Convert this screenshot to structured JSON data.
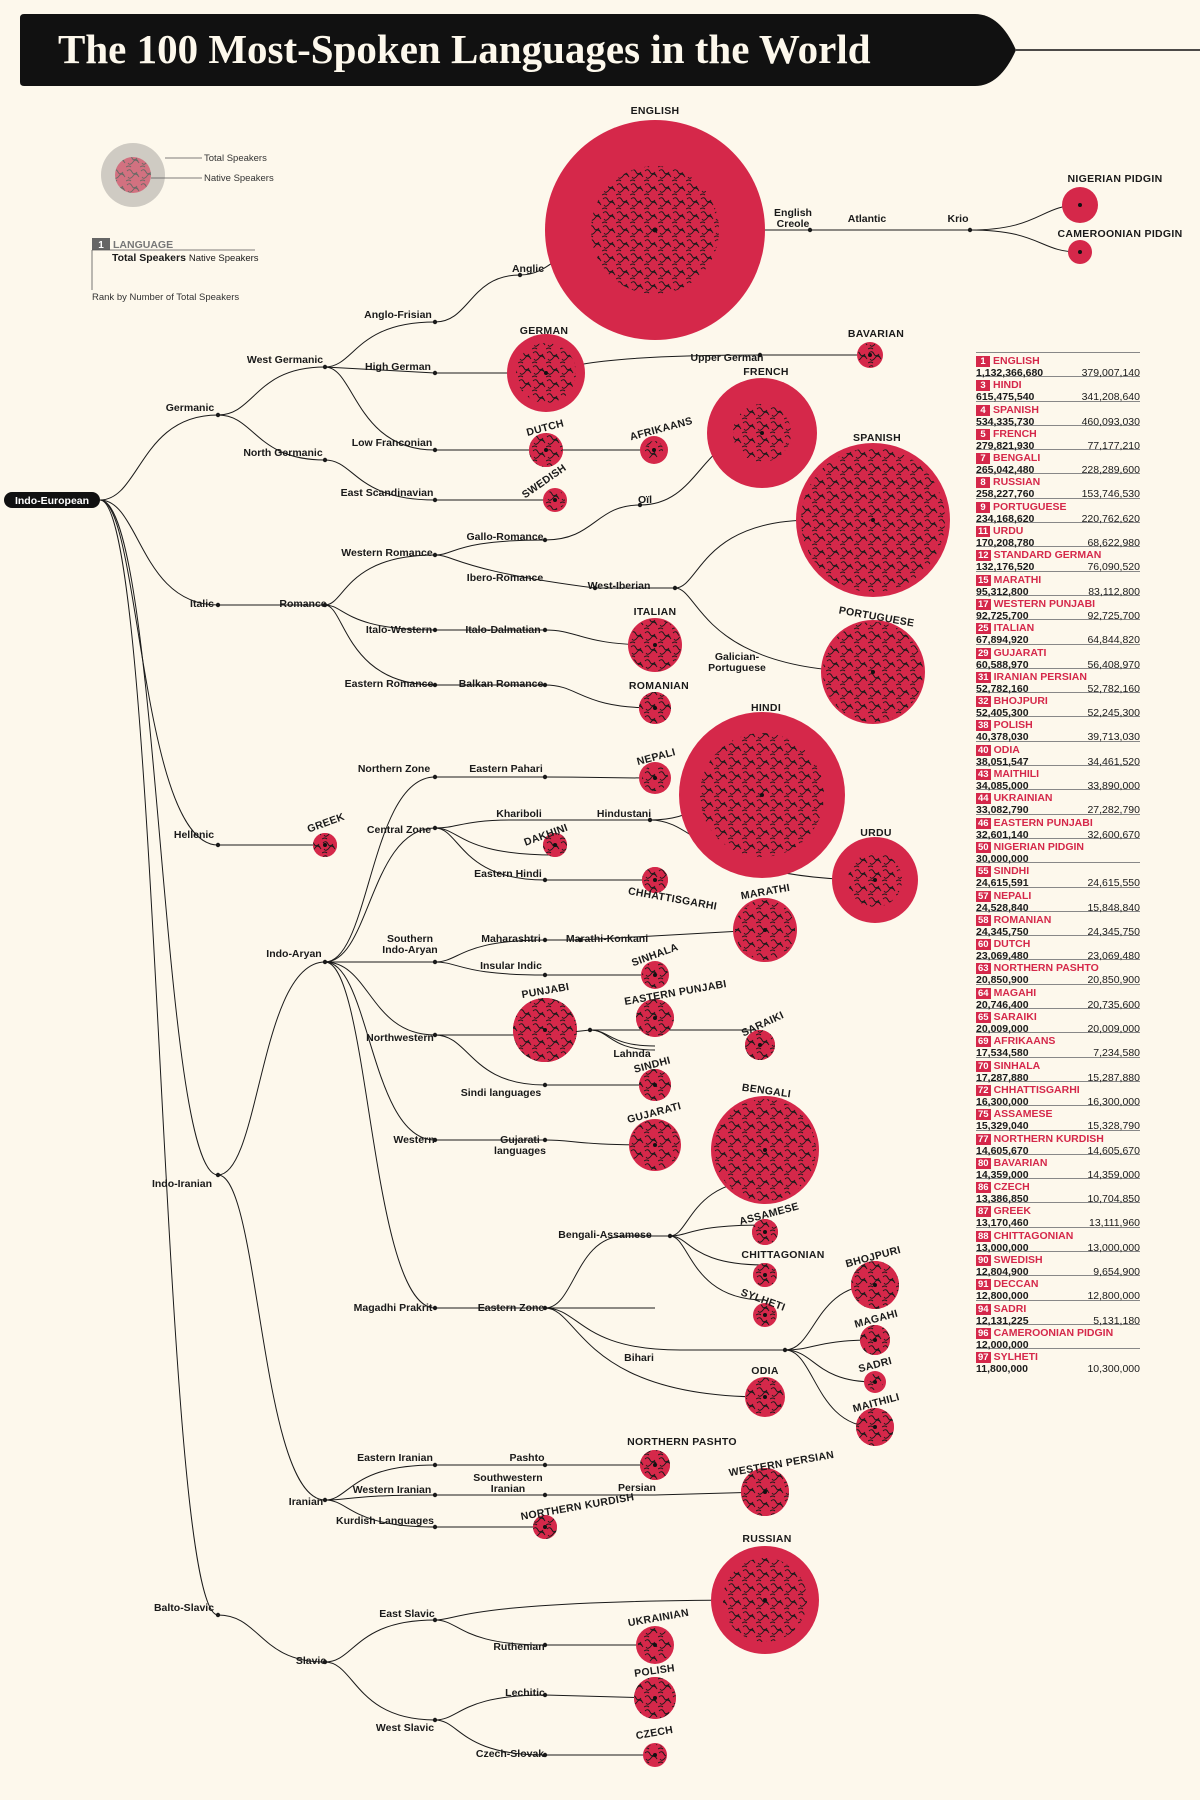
{
  "title": "The 100 Most-Spoken Languages in the World",
  "colors": {
    "accent": "#d5284a",
    "background": "#fdf8ec",
    "ink": "#1a1a1a"
  },
  "legend": {
    "total_speakers": "Total Speakers",
    "native_speakers": "Native Speakers",
    "rank_badge": "1",
    "language": "LANGUAGE",
    "total_bold": "Total Speakers",
    "native_label": "Native Speakers",
    "rank_note": "Rank by Number of Total Speakers"
  },
  "tree_labels": {
    "indo_european": "Indo-European",
    "germanic": "Germanic",
    "west_germanic": "West Germanic",
    "north_germanic": "North Germanic",
    "anglo_frisian": "Anglo-Frisian",
    "anglic": "Anglic",
    "high_german": "High German",
    "upper_german": "Upper German",
    "low_franconian": "Low Franconian",
    "east_scandinavian": "East Scandinavian",
    "english_creole_1": "English",
    "english_creole_2": "Creole",
    "atlantic": "Atlantic",
    "krio": "Krio",
    "italic": "Italic",
    "romance": "Romance",
    "western_romance": "Western Romance",
    "gallo_romance": "Gallo-Romance",
    "oil": "Oïl",
    "ibero_romance": "Ibero-Romance",
    "west_iberian": "West-Iberian",
    "galician_1": "Galician-",
    "galician_2": "Portuguese",
    "italo_western": "Italo-Western",
    "italo_dalmatian": "Italo-Dalmatian",
    "eastern_romance": "Eastern Romance",
    "balkan_romance": "Balkan Romance",
    "hellenic": "Hellenic",
    "indo_iranian": "Indo-Iranian",
    "indo_aryan": "Indo-Aryan",
    "northern_zone": "Northern Zone",
    "eastern_pahari": "Eastern Pahari",
    "central_zone": "Central Zone",
    "khariboli": "Khariboli",
    "hindustani": "Hindustani",
    "eastern_hindi": "Eastern Hindi",
    "southern_ia_1": "Southern",
    "southern_ia_2": "Indo-Aryan",
    "maharashtri": "Maharashtri",
    "marathi_konkani": "Marathi-Konkani",
    "insular_indic": "Insular Indic",
    "northwestern": "Northwestern",
    "lahnda": "Lahnda",
    "sindi_languages": "Sindi languages",
    "western": "Western",
    "gujarati_lang_1": "Gujarati",
    "gujarati_lang_2": "languages",
    "magadhi_prakrit": "Magadhi Prakrit",
    "eastern_zone": "Eastern Zone",
    "bengali_assamese": "Bengali-Assamese",
    "bihari": "Bihari",
    "iranian": "Iranian",
    "eastern_iranian": "Eastern Iranian",
    "pashto": "Pashto",
    "western_iranian": "Western Iranian",
    "sw_iranian_1": "Southwestern",
    "sw_iranian_2": "Iranian",
    "persian": "Persian",
    "kurdish_languages": "Kurdish Languages",
    "balto_slavic": "Balto-Slavic",
    "slavic": "Slavic",
    "east_slavic": "East Slavic",
    "ruthenian": "Ruthenian",
    "west_slavic": "West Slavic",
    "lechitic": "Lechitic",
    "czech_slovak": "Czech-Slovak"
  },
  "language_labels": {
    "english": "ENGLISH",
    "nigerian_pidgin": "NIGERIAN PIDGIN",
    "cameroonian_pidgin": "CAMEROONIAN PIDGIN",
    "german": "GERMAN",
    "bavarian": "BAVARIAN",
    "dutch": "DUTCH",
    "afrikaans": "AFRIKAANS",
    "swedish": "SWEDISH",
    "french": "FRENCH",
    "spanish": "SPANISH",
    "portuguese": "PORTUGUESE",
    "italian": "ITALIAN",
    "romanian": "ROMANIAN",
    "greek": "GREEK",
    "nepali": "NEPALI",
    "hindi": "HINDI",
    "dakhini": "DAKHINI",
    "urdu": "URDU",
    "chhattisgarhi": "CHHATTISGARHI",
    "marathi": "MARATHI",
    "sinhala": "SINHALA",
    "punjabi": "PUNJABI",
    "eastern_punjabi": "EASTERN PUNJABI",
    "saraiki": "SARAIKI",
    "sindhi": "SINDHI",
    "gujarati": "GUJARATI",
    "bengali": "BENGALI",
    "assamese": "ASSAMESE",
    "chittagonian": "CHITTAGONIAN",
    "sylheti": "SYLHETI",
    "bhojpuri": "BHOJPURI",
    "magahi": "MAGAHI",
    "sadri": "SADRI",
    "odia": "ODIA",
    "maithili": "MAITHILI",
    "northern_pashto": "NORTHERN PASHTO",
    "western_persian": "WESTERN PERSIAN",
    "northern_kurdish": "NORTHERN KURDISH",
    "russian": "RUSSIAN",
    "ukrainian": "UKRAINIAN",
    "polish": "POLISH",
    "czech": "CZECH"
  },
  "ranking": [
    {
      "rank": "1",
      "name": "ENGLISH",
      "total": "1,132,366,680",
      "native": "379,007,140"
    },
    {
      "rank": "3",
      "name": "HINDI",
      "total": "615,475,540",
      "native": "341,208,640"
    },
    {
      "rank": "4",
      "name": "SPANISH",
      "total": "534,335,730",
      "native": "460,093,030"
    },
    {
      "rank": "5",
      "name": "FRENCH",
      "total": "279,821,930",
      "native": "77,177,210"
    },
    {
      "rank": "7",
      "name": "BENGALI",
      "total": "265,042,480",
      "native": "228,289,600"
    },
    {
      "rank": "8",
      "name": "RUSSIAN",
      "total": "258,227,760",
      "native": "153,746,530"
    },
    {
      "rank": "9",
      "name": "PORTUGUESE",
      "total": "234,168,620",
      "native": "220,762,620"
    },
    {
      "rank": "11",
      "name": "URDU",
      "total": "170,208,780",
      "native": "68,622,980"
    },
    {
      "rank": "12",
      "name": "STANDARD GERMAN",
      "total": "132,176,520",
      "native": "76,090,520"
    },
    {
      "rank": "15",
      "name": "MARATHI",
      "total": "95,312,800",
      "native": "83,112,800"
    },
    {
      "rank": "17",
      "name": "WESTERN PUNJABI",
      "total": "92,725,700",
      "native": "92,725,700"
    },
    {
      "rank": "25",
      "name": "ITALIAN",
      "total": "67,894,920",
      "native": "64,844,820"
    },
    {
      "rank": "29",
      "name": "GUJARATI",
      "total": "60,588,970",
      "native": "56,408,970"
    },
    {
      "rank": "31",
      "name": "IRANIAN PERSIAN",
      "total": "52,782,160",
      "native": "52,782,160"
    },
    {
      "rank": "32",
      "name": "BHOJPURI",
      "total": "52,405,300",
      "native": "52,245,300"
    },
    {
      "rank": "38",
      "name": "POLISH",
      "total": "40,378,030",
      "native": "39,713,030"
    },
    {
      "rank": "40",
      "name": "ODIA",
      "total": "38,051,547",
      "native": "34,461,520"
    },
    {
      "rank": "43",
      "name": "MAITHILI",
      "total": "34,085,000",
      "native": "33,890,000"
    },
    {
      "rank": "44",
      "name": "UKRAINIAN",
      "total": "33,082,790",
      "native": "27,282,790"
    },
    {
      "rank": "46",
      "name": "EASTERN PUNJABI",
      "total": "32,601,140",
      "native": "32,600,670"
    },
    {
      "rank": "50",
      "name": "NIGERIAN PIDGIN",
      "total": "30,000,000",
      "native": ""
    },
    {
      "rank": "55",
      "name": "SINDHI",
      "total": "24,615,591",
      "native": "24,615,550"
    },
    {
      "rank": "57",
      "name": "NEPALI",
      "total": "24,528,840",
      "native": "15,848,840"
    },
    {
      "rank": "58",
      "name": "ROMANIAN",
      "total": "24,345,750",
      "native": "24,345,750"
    },
    {
      "rank": "60",
      "name": "DUTCH",
      "total": "23,069,480",
      "native": "23,069,480"
    },
    {
      "rank": "63",
      "name": "NORTHERN PASHTO",
      "total": "20,850,900",
      "native": "20,850,900"
    },
    {
      "rank": "64",
      "name": "MAGAHI",
      "total": "20,746,400",
      "native": "20,735,600"
    },
    {
      "rank": "65",
      "name": "SARAIKI",
      "total": "20,009,000",
      "native": "20,009,000"
    },
    {
      "rank": "69",
      "name": "AFRIKAANS",
      "total": "17,534,580",
      "native": "7,234,580"
    },
    {
      "rank": "70",
      "name": "SINHALA",
      "total": "17,287,880",
      "native": "15,287,880"
    },
    {
      "rank": "72",
      "name": "CHHATTISGARHI",
      "total": "16,300,000",
      "native": "16,300,000"
    },
    {
      "rank": "75",
      "name": "ASSAMESE",
      "total": "15,329,040",
      "native": "15,328,790"
    },
    {
      "rank": "77",
      "name": "NORTHERN KURDISH",
      "total": "14,605,670",
      "native": "14,605,670"
    },
    {
      "rank": "80",
      "name": "BAVARIAN",
      "total": "14,359,000",
      "native": "14,359,000"
    },
    {
      "rank": "86",
      "name": "CZECH",
      "total": "13,386,850",
      "native": "10,704,850"
    },
    {
      "rank": "87",
      "name": "GREEK",
      "total": "13,170,460",
      "native": "13,111,960"
    },
    {
      "rank": "88",
      "name": "CHITTAGONIAN",
      "total": "13,000,000",
      "native": "13,000,000"
    },
    {
      "rank": "90",
      "name": "SWEDISH",
      "total": "12,804,900",
      "native": "9,654,900"
    },
    {
      "rank": "91",
      "name": "DECCAN",
      "total": "12,800,000",
      "native": "12,800,000"
    },
    {
      "rank": "94",
      "name": "SADRI",
      "total": "12,131,225",
      "native": "5,131,180"
    },
    {
      "rank": "96",
      "name": "CAMEROONIAN PIDGIN",
      "total": "12,000,000",
      "native": ""
    },
    {
      "rank": "97",
      "name": "SYLHETI",
      "total": "11,800,000",
      "native": "10,300,000"
    }
  ]
}
